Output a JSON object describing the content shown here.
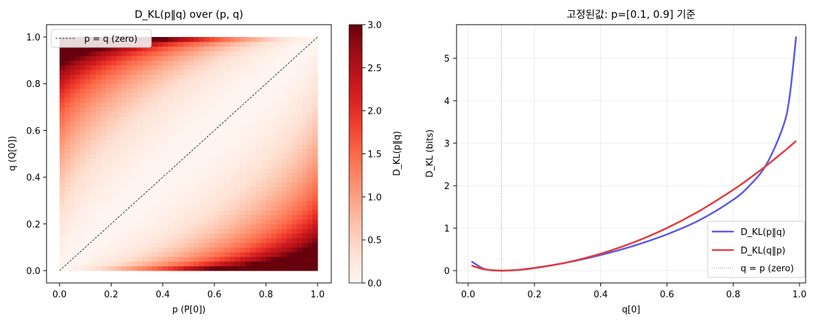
{
  "chart_data": [
    {
      "type": "heatmap",
      "title": "D_KL(p‖q) over (p, q)",
      "xlabel": "p (P[0])",
      "ylabel": "q (Q[0])",
      "xlim": [
        0,
        1
      ],
      "ylim": [
        0,
        1
      ],
      "xticks": [
        "0.0",
        "0.2",
        "0.4",
        "0.6",
        "0.8",
        "1.0"
      ],
      "yticks": [
        "0.0",
        "0.2",
        "0.4",
        "0.6",
        "0.8",
        "1.0"
      ],
      "grid_range": [
        0.01,
        0.99
      ],
      "grid_steps": 50,
      "function": "p*log2(p/q) + (1-p)*log2((1-p)/(1-q))",
      "colormap": "Reds",
      "color_range": [
        0,
        3
      ],
      "colorbar": {
        "label": "D_KL(p‖q)",
        "ticks": [
          "0.0",
          "0.5",
          "1.0",
          "1.5",
          "2.0",
          "2.5",
          "3.0"
        ]
      },
      "legend": {
        "position": "top-left",
        "entries": [
          "p = q (zero)"
        ]
      },
      "diagonal": {
        "from": [
          0,
          0
        ],
        "to": [
          1,
          1
        ],
        "label": "p = q (zero)"
      }
    },
    {
      "type": "line",
      "title": "고정된값: p=[0.1, 0.9] 기준",
      "xlabel": "q[0]",
      "ylabel": "D_KL (bits)",
      "xlim": [
        0,
        1
      ],
      "ylim": [
        0,
        5.5
      ],
      "xticks": [
        "0.0",
        "0.2",
        "0.4",
        "0.6",
        "0.8",
        "1.0"
      ],
      "yticks": [
        "0",
        "1",
        "2",
        "3",
        "4",
        "5"
      ],
      "grid": true,
      "legend_position": "bottom-right",
      "fixed_p": 0.1,
      "x": [
        0.01,
        0.05,
        0.1,
        0.15,
        0.2,
        0.3,
        0.4,
        0.5,
        0.6,
        0.7,
        0.8,
        0.85,
        0.9,
        0.95,
        0.97,
        0.99
      ],
      "series": [
        {
          "name": "D_KL(p‖q)",
          "color": "#5b5be6",
          "values": [
            0.216,
            0.037,
            0.0,
            0.018,
            0.064,
            0.193,
            0.368,
            0.585,
            0.854,
            1.196,
            1.668,
            2.008,
            2.496,
            3.378,
            4.084,
            5.512
          ]
        },
        {
          "name": "D_KL(q‖p)",
          "color": "#e53b3b",
          "values": [
            0.118,
            0.028,
            0.0,
            0.016,
            0.058,
            0.196,
            0.399,
            0.667,
            1.003,
            1.414,
            1.902,
            2.177,
            2.47,
            2.786,
            2.918,
            3.054
          ]
        }
      ],
      "vline": {
        "x": 0.1,
        "label": "q = p (zero)"
      },
      "legend": [
        "D_KL(p‖q)",
        "D_KL(q‖p)",
        "q = p (zero)"
      ]
    }
  ]
}
